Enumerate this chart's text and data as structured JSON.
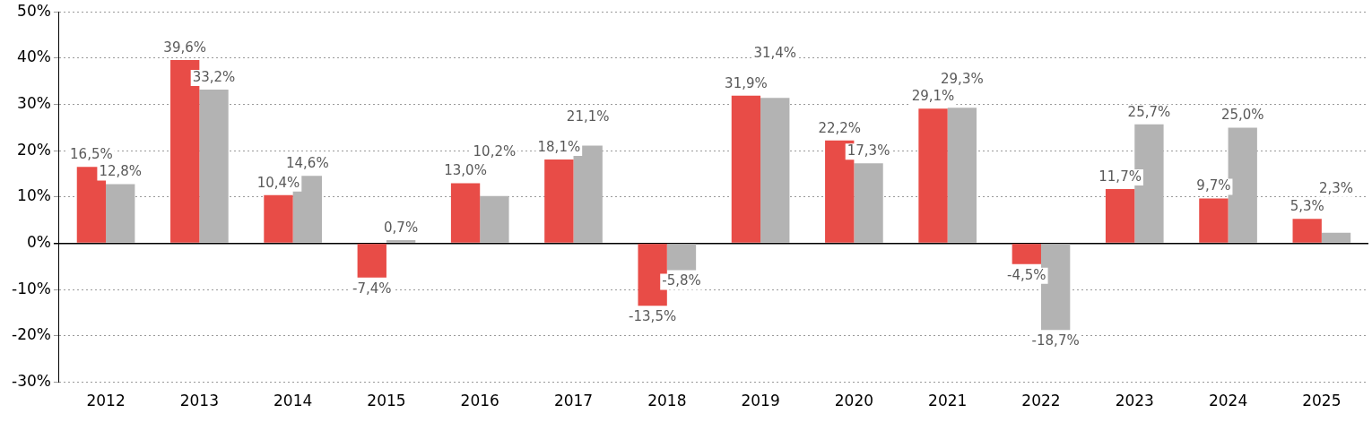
{
  "chart_data": {
    "type": "bar",
    "categories": [
      "2012",
      "2013",
      "2014",
      "2015",
      "2016",
      "2017",
      "2018",
      "2019",
      "2020",
      "2021",
      "2022",
      "2023",
      "2024",
      "2025"
    ],
    "series": [
      {
        "color": "#e84c47",
        "values": [
          16.5,
          39.6,
          10.4,
          -7.4,
          13.0,
          18.1,
          -13.5,
          31.9,
          22.2,
          29.1,
          -4.5,
          11.7,
          9.7,
          5.3
        ],
        "value_labels": [
          "16,5%",
          "39,6%",
          "10,4%",
          "-7,4%",
          "13,0%",
          "18,1%",
          "-13,5%",
          "31,9%",
          "22,2%",
          "29,1%",
          "-4,5%",
          "11,7%",
          "9,7%",
          "5,3%"
        ]
      },
      {
        "color": "#b3b3b3",
        "values": [
          12.8,
          33.2,
          14.6,
          0.7,
          10.2,
          21.1,
          -5.8,
          31.4,
          17.3,
          29.3,
          -18.7,
          25.7,
          25.0,
          2.3
        ],
        "value_labels": [
          "12,8%",
          "33,2%",
          "14,6%",
          "0,7%",
          "10,2%",
          "21,1%",
          "-5,8%",
          "31,4%",
          "17,3%",
          "29,3%",
          "-18,7%",
          "25,7%",
          "25,0%",
          "2,3%"
        ]
      }
    ],
    "ylim": [
      -30,
      50
    ],
    "yticks": [
      {
        "value": -30,
        "label": "-30%"
      },
      {
        "value": -20,
        "label": "-20%"
      },
      {
        "value": -10,
        "label": "-10%"
      },
      {
        "value": 0,
        "label": "0%"
      },
      {
        "value": 10,
        "label": "10%"
      },
      {
        "value": 20,
        "label": "20%"
      },
      {
        "value": 30,
        "label": "30%"
      },
      {
        "value": 40,
        "label": "40%"
      },
      {
        "value": 50,
        "label": "50%"
      }
    ],
    "grid": "y",
    "legend": false
  }
}
